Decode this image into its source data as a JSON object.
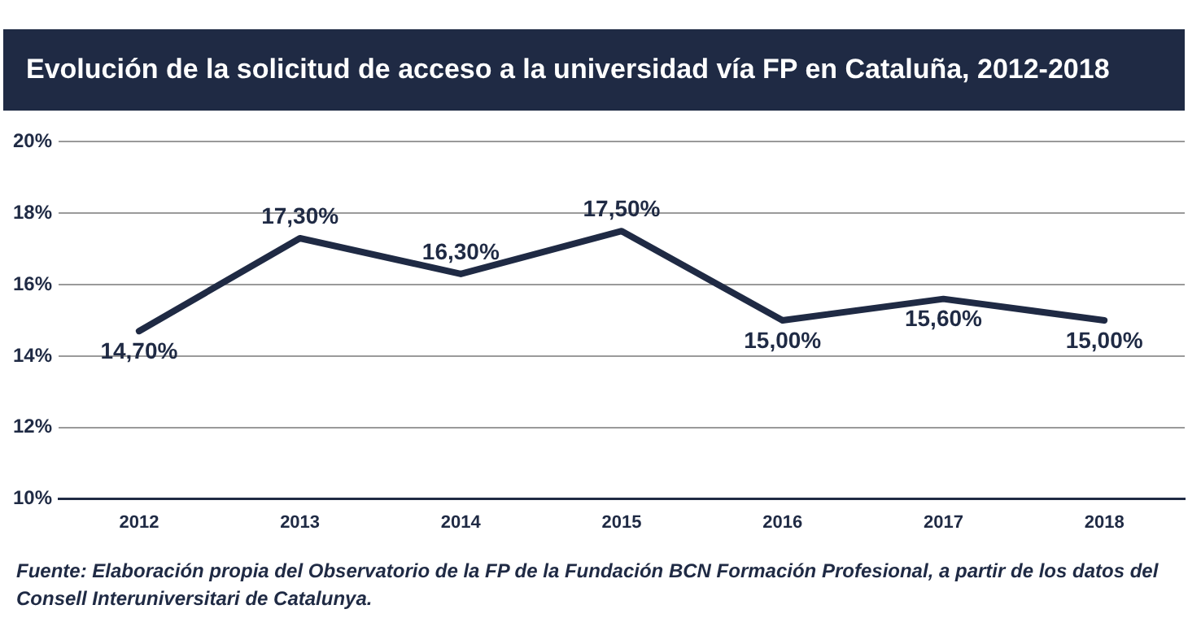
{
  "chart_data": {
    "type": "line",
    "title": "Evolución de la solicitud de acceso a la universidad vía FP en Cataluña, 2012-2018",
    "categories": [
      "2012",
      "2013",
      "2014",
      "2015",
      "2016",
      "2017",
      "2018"
    ],
    "series": [
      {
        "color": "#1f2a44",
        "values": [
          14.7,
          17.3,
          16.3,
          17.5,
          15.0,
          15.6,
          15.0
        ]
      }
    ],
    "value_labels": [
      "14,70%",
      "17,30%",
      "16,30%",
      "17,50%",
      "15,00%",
      "15,60%",
      "15,00%"
    ],
    "ylim": [
      10,
      20
    ],
    "yticks": [
      {
        "value": 10,
        "label": "10%"
      },
      {
        "value": 12,
        "label": "12%"
      },
      {
        "value": 14,
        "label": "14%"
      },
      {
        "value": 16,
        "label": "16%"
      },
      {
        "value": 18,
        "label": "18%"
      },
      {
        "value": 20,
        "label": "20%"
      }
    ],
    "grid": "y",
    "legend": false,
    "marker": "none",
    "line_style": "solid",
    "annotations": [
      "Fuente: Elaboración propia del Observatorio de la FP de la Fundación BCN Formación Profesional, a partir de los datos del Consell Interuniversitari de Catalunya."
    ]
  }
}
